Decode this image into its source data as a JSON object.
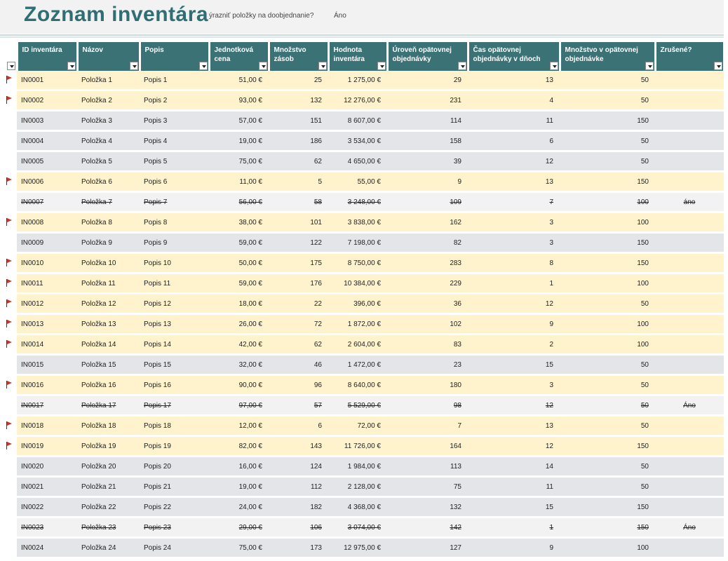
{
  "header": {
    "title": "Zoznam inventára",
    "highlight_question": "ýrazniť položky na doobjednanie?",
    "highlight_value": "Áno"
  },
  "colors": {
    "header_bg": "#3a7275",
    "reorder_row": "#fff3cd",
    "normal_row": "#e3e5e8",
    "cancelled_row": "#f2f2f2",
    "flag": "#c0392b",
    "title": "#2f6f73"
  },
  "columns": [
    "ID inventára",
    "Názov",
    "Popis",
    "Jednotková cena",
    "Množstvo zásob",
    "Hodnota inventára",
    "Úroveň opätovnej objednávky",
    "Čas opätovnej objednávky v dňoch",
    "Množstvo v opätovnej objednávke",
    "Zrušené?"
  ],
  "rows": [
    {
      "flag": true,
      "id": "IN0001",
      "name": "Položka 1",
      "desc": "Popis 1",
      "price": "51,00 €",
      "qty": "25",
      "value": "1 275,00 €",
      "reorder_level": "29",
      "reorder_days": "13",
      "reorder_qty": "50",
      "cancelled": "",
      "state": "reorder"
    },
    {
      "flag": true,
      "id": "IN0002",
      "name": "Položka 2",
      "desc": "Popis 2",
      "price": "93,00 €",
      "qty": "132",
      "value": "12 276,00 €",
      "reorder_level": "231",
      "reorder_days": "4",
      "reorder_qty": "50",
      "cancelled": "",
      "state": "reorder"
    },
    {
      "flag": false,
      "id": "IN0003",
      "name": "Položka 3",
      "desc": "Popis 3",
      "price": "57,00 €",
      "qty": "151",
      "value": "8 607,00 €",
      "reorder_level": "114",
      "reorder_days": "11",
      "reorder_qty": "150",
      "cancelled": "",
      "state": "normal"
    },
    {
      "flag": false,
      "id": "IN0004",
      "name": "Položka 4",
      "desc": "Popis 4",
      "price": "19,00 €",
      "qty": "186",
      "value": "3 534,00 €",
      "reorder_level": "158",
      "reorder_days": "6",
      "reorder_qty": "50",
      "cancelled": "",
      "state": "normal"
    },
    {
      "flag": false,
      "id": "IN0005",
      "name": "Položka 5",
      "desc": "Popis 5",
      "price": "75,00 €",
      "qty": "62",
      "value": "4 650,00 €",
      "reorder_level": "39",
      "reorder_days": "12",
      "reorder_qty": "50",
      "cancelled": "",
      "state": "normal"
    },
    {
      "flag": true,
      "id": "IN0006",
      "name": "Položka 6",
      "desc": "Popis 6",
      "price": "11,00 €",
      "qty": "5",
      "value": "55,00 €",
      "reorder_level": "9",
      "reorder_days": "13",
      "reorder_qty": "150",
      "cancelled": "",
      "state": "reorder"
    },
    {
      "flag": false,
      "id": "IN0007",
      "name": "Položka 7",
      "desc": "Popis 7",
      "price": "56,00 €",
      "qty": "58",
      "value": "3 248,00 €",
      "reorder_level": "109",
      "reorder_days": "7",
      "reorder_qty": "100",
      "cancelled": "áno",
      "state": "cancelled"
    },
    {
      "flag": true,
      "id": "IN0008",
      "name": "Položka 8",
      "desc": "Popis 8",
      "price": "38,00 €",
      "qty": "101",
      "value": "3 838,00 €",
      "reorder_level": "162",
      "reorder_days": "3",
      "reorder_qty": "100",
      "cancelled": "",
      "state": "reorder"
    },
    {
      "flag": false,
      "id": "IN0009",
      "name": "Položka 9",
      "desc": "Popis 9",
      "price": "59,00 €",
      "qty": "122",
      "value": "7 198,00 €",
      "reorder_level": "82",
      "reorder_days": "3",
      "reorder_qty": "150",
      "cancelled": "",
      "state": "normal"
    },
    {
      "flag": true,
      "id": "IN0010",
      "name": "Položka 10",
      "desc": "Popis 10",
      "price": "50,00 €",
      "qty": "175",
      "value": "8 750,00 €",
      "reorder_level": "283",
      "reorder_days": "8",
      "reorder_qty": "150",
      "cancelled": "",
      "state": "reorder"
    },
    {
      "flag": true,
      "id": "IN0011",
      "name": "Položka 11",
      "desc": "Popis 11",
      "price": "59,00 €",
      "qty": "176",
      "value": "10 384,00 €",
      "reorder_level": "229",
      "reorder_days": "1",
      "reorder_qty": "100",
      "cancelled": "",
      "state": "reorder"
    },
    {
      "flag": true,
      "id": "IN0012",
      "name": "Položka 12",
      "desc": "Popis 12",
      "price": "18,00 €",
      "qty": "22",
      "value": "396,00 €",
      "reorder_level": "36",
      "reorder_days": "12",
      "reorder_qty": "50",
      "cancelled": "",
      "state": "reorder"
    },
    {
      "flag": true,
      "id": "IN0013",
      "name": "Položka 13",
      "desc": "Popis 13",
      "price": "26,00 €",
      "qty": "72",
      "value": "1 872,00 €",
      "reorder_level": "102",
      "reorder_days": "9",
      "reorder_qty": "100",
      "cancelled": "",
      "state": "reorder"
    },
    {
      "flag": true,
      "id": "IN0014",
      "name": "Položka 14",
      "desc": "Popis 14",
      "price": "42,00 €",
      "qty": "62",
      "value": "2 604,00 €",
      "reorder_level": "83",
      "reorder_days": "2",
      "reorder_qty": "100",
      "cancelled": "",
      "state": "reorder"
    },
    {
      "flag": false,
      "id": "IN0015",
      "name": "Položka 15",
      "desc": "Popis 15",
      "price": "32,00 €",
      "qty": "46",
      "value": "1 472,00 €",
      "reorder_level": "23",
      "reorder_days": "15",
      "reorder_qty": "50",
      "cancelled": "",
      "state": "normal"
    },
    {
      "flag": true,
      "id": "IN0016",
      "name": "Položka 16",
      "desc": "Popis 16",
      "price": "90,00 €",
      "qty": "96",
      "value": "8 640,00 €",
      "reorder_level": "180",
      "reorder_days": "3",
      "reorder_qty": "50",
      "cancelled": "",
      "state": "reorder"
    },
    {
      "flag": false,
      "id": "IN0017",
      "name": "Položka 17",
      "desc": "Popis 17",
      "price": "97,00 €",
      "qty": "57",
      "value": "5 529,00 €",
      "reorder_level": "98",
      "reorder_days": "12",
      "reorder_qty": "50",
      "cancelled": "Áno",
      "state": "cancelled"
    },
    {
      "flag": true,
      "id": "IN0018",
      "name": "Položka 18",
      "desc": "Popis 18",
      "price": "12,00 €",
      "qty": "6",
      "value": "72,00 €",
      "reorder_level": "7",
      "reorder_days": "13",
      "reorder_qty": "50",
      "cancelled": "",
      "state": "reorder"
    },
    {
      "flag": true,
      "id": "IN0019",
      "name": "Položka 19",
      "desc": "Popis 19",
      "price": "82,00 €",
      "qty": "143",
      "value": "11 726,00 €",
      "reorder_level": "164",
      "reorder_days": "12",
      "reorder_qty": "150",
      "cancelled": "",
      "state": "reorder"
    },
    {
      "flag": false,
      "id": "IN0020",
      "name": "Položka 20",
      "desc": "Popis 20",
      "price": "16,00 €",
      "qty": "124",
      "value": "1 984,00 €",
      "reorder_level": "113",
      "reorder_days": "14",
      "reorder_qty": "50",
      "cancelled": "",
      "state": "normal"
    },
    {
      "flag": false,
      "id": "IN0021",
      "name": "Položka 21",
      "desc": "Popis 21",
      "price": "19,00 €",
      "qty": "112",
      "value": "2 128,00 €",
      "reorder_level": "75",
      "reorder_days": "11",
      "reorder_qty": "50",
      "cancelled": "",
      "state": "normal"
    },
    {
      "flag": false,
      "id": "IN0022",
      "name": "Položka 22",
      "desc": "Popis 22",
      "price": "24,00 €",
      "qty": "182",
      "value": "4 368,00 €",
      "reorder_level": "132",
      "reorder_days": "15",
      "reorder_qty": "150",
      "cancelled": "",
      "state": "normal"
    },
    {
      "flag": false,
      "id": "IN0023",
      "name": "Položka 23",
      "desc": "Popis 23",
      "price": "29,00 €",
      "qty": "106",
      "value": "3 074,00 €",
      "reorder_level": "142",
      "reorder_days": "1",
      "reorder_qty": "150",
      "cancelled": "Áno",
      "state": "cancelled"
    },
    {
      "flag": false,
      "id": "IN0024",
      "name": "Položka 24",
      "desc": "Popis 24",
      "price": "75,00 €",
      "qty": "173",
      "value": "12 975,00 €",
      "reorder_level": "127",
      "reorder_days": "9",
      "reorder_qty": "100",
      "cancelled": "",
      "state": "normal"
    }
  ]
}
